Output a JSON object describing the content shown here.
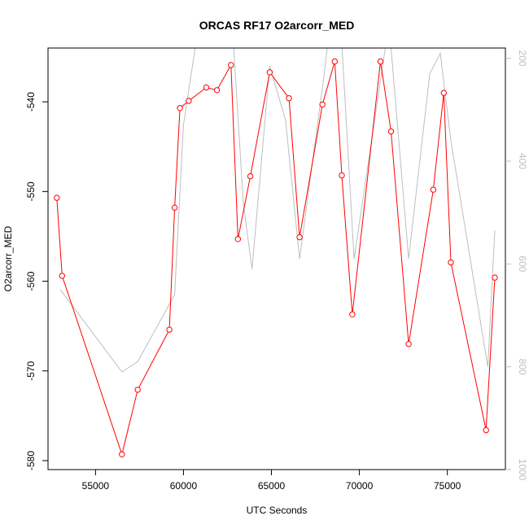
{
  "colors": {
    "primary_series": "#ff0000",
    "secondary_series": "#bebebe",
    "axis": "#000000",
    "right_axis": "#bebebe",
    "background": "#ffffff"
  },
  "chart_data": {
    "type": "line",
    "title": "ORCAS RF17 O2arcorr_MED",
    "xlabel": "UTC Seconds",
    "ylabel": "O2arcorr_MED",
    "xlim": [
      52300,
      78300
    ],
    "ylim": [
      -581,
      -534
    ],
    "y2lim": [
      1000,
      180
    ],
    "x_ticks": [
      55000,
      60000,
      65000,
      70000,
      75000
    ],
    "y_ticks": [
      -580,
      -570,
      -560,
      -550,
      -540
    ],
    "y2_ticks": [
      200,
      400,
      600,
      800,
      1000
    ],
    "grid": false,
    "legend": "none",
    "series": [
      {
        "axis": "left",
        "style": "line-with-open-circles",
        "x": [
          52800,
          53100,
          56500,
          57400,
          59200,
          59500,
          59800,
          60300,
          61300,
          61900,
          62700,
          63100,
          63800,
          64900,
          66000,
          66600,
          67900,
          68600,
          69000,
          69600,
          71200,
          71800,
          72800,
          74200,
          74800,
          75200,
          77200,
          77700
        ],
        "y": [
          -550.7,
          -559.4,
          -579.3,
          -572.1,
          -565.4,
          -551.8,
          -540.7,
          -539.9,
          -538.4,
          -538.7,
          -535.9,
          -555.3,
          -548.3,
          -536.7,
          -539.6,
          -555.1,
          -540.3,
          -535.5,
          -548.2,
          -563.7,
          -535.5,
          -543.3,
          -567.0,
          -549.8,
          -539.0,
          -557.9,
          -576.6,
          -559.6
        ]
      },
      {
        "axis": "right",
        "style": "line",
        "x": [
          53000,
          56500,
          57400,
          59500,
          60000,
          60800,
          61400,
          61900,
          62200,
          62800,
          63400,
          63700,
          63900,
          64900,
          65800,
          66600,
          68000,
          68500,
          68900,
          69700,
          71600,
          71800,
          72800,
          74000,
          74600,
          75200,
          77300,
          77700
        ],
        "y": [
          650,
          810,
          790,
          660,
          330,
          150,
          140,
          180,
          145,
          150,
          480,
          560,
          610,
          215,
          320,
          590,
          230,
          80,
          110,
          590,
          150,
          180,
          590,
          230,
          190,
          360,
          800,
          535
        ]
      }
    ]
  }
}
